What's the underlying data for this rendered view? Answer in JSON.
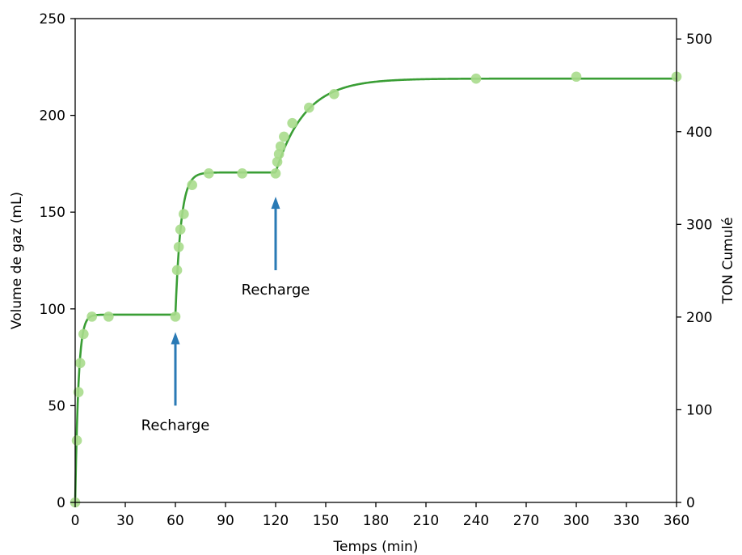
{
  "chart_data": {
    "type": "scatter",
    "xlabel": "Temps (min)",
    "ylabel": "Volume de gaz (mL)",
    "ylabel_right": "TON Cumulé",
    "xlim": [
      0,
      360
    ],
    "ylim": [
      0,
      250
    ],
    "ylim_right": [
      0,
      522
    ],
    "xticks": [
      0,
      30,
      60,
      90,
      120,
      150,
      180,
      210,
      240,
      270,
      300,
      330,
      360
    ],
    "yticks": [
      0,
      50,
      100,
      150,
      200,
      250
    ],
    "yticks_right": [
      0,
      100,
      200,
      300,
      400,
      500
    ],
    "grid": false,
    "colors": {
      "points": "#a8dc8c",
      "fit_line": "#3a9e35",
      "arrows": "#2a7ab5"
    },
    "series": [
      {
        "kind": "points",
        "x": [
          0,
          1,
          2,
          3,
          5,
          10,
          20,
          60,
          61,
          62,
          63,
          65,
          70,
          80,
          100,
          120,
          121,
          122,
          123,
          125,
          130,
          140,
          155,
          240,
          300,
          360
        ],
        "y": [
          0,
          32,
          57,
          72,
          87,
          96,
          96,
          96,
          120,
          132,
          141,
          149,
          164,
          170,
          170,
          170,
          176,
          180,
          184,
          189,
          196,
          204,
          211,
          219,
          220,
          220
        ]
      },
      {
        "kind": "fit",
        "segments": [
          {
            "start": 0,
            "end": 60,
            "base": 0,
            "amplitude": 97,
            "rate": 0.5
          },
          {
            "start": 60,
            "end": 120,
            "base": 97,
            "amplitude": 73.5,
            "rate": 0.3
          },
          {
            "start": 120,
            "end": 360,
            "base": 170.5,
            "amplitude": 48.5,
            "rate": 0.0568
          }
        ]
      }
    ],
    "annotations": [
      {
        "text": "Recharge",
        "x": 60,
        "arrow_from_y": 50,
        "arrow_to_y": 88
      },
      {
        "text": "Recharge",
        "x": 120,
        "arrow_from_y": 120,
        "arrow_to_y": 158
      }
    ]
  }
}
